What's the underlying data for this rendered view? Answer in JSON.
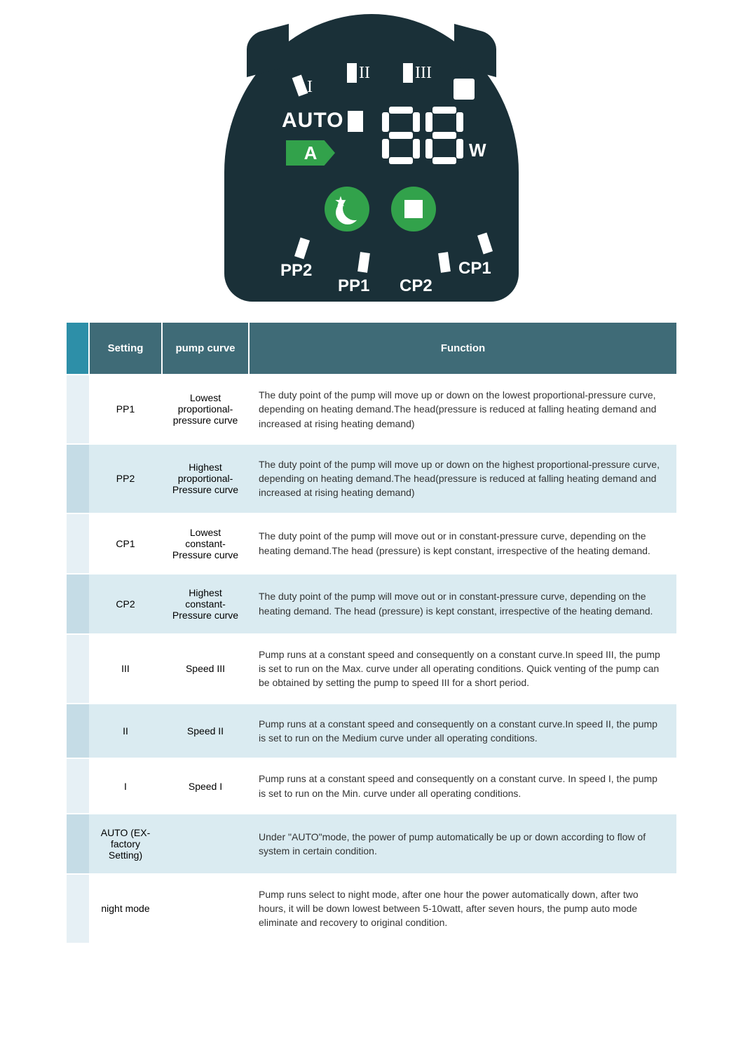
{
  "colors": {
    "panel_bg": "#1a3038",
    "accent_green": "#32a24b",
    "white": "#ffffff",
    "header_bg": "#3f6b77",
    "header_lead": "#2d8fa8",
    "row_odd_lead": "#e6f0f5",
    "row_odd_body": "#ffffff",
    "row_even_lead": "#c5dce6",
    "row_even_body": "#daebf1",
    "text_body": "#333333"
  },
  "display": {
    "speed_labels": {
      "i": "I",
      "ii": "II",
      "iii": "III"
    },
    "auto_label": "AUTO",
    "a_tag": "A",
    "watt_unit": "W",
    "digit_value": "88",
    "bottom_labels": {
      "pp2": "PP2",
      "pp1": "PP1",
      "cp2": "CP2",
      "cp1": "CP1"
    },
    "rotate_glyph": "↻"
  },
  "table": {
    "headers": {
      "setting": "Setting",
      "curve": "pump curve",
      "function": "Function"
    },
    "rows": [
      {
        "setting": "PP1",
        "curve": "Lowest proportional-pressure curve",
        "function": "The duty point of the pump will move up or down on the lowest proportional-pressure curve, depending on heating demand.The head(pressure is reduced at falling heating demand and increased at rising heating demand)"
      },
      {
        "setting": "PP2",
        "curve": "Highest proportional-Pressure curve",
        "function": "The duty point of the pump will move up or down on the highest proportional-pressure curve, depending on heating demand.The head(pressure is reduced at falling heating demand and increased at rising heating demand)"
      },
      {
        "setting": "CP1",
        "curve": "Lowest constant-Pressure curve",
        "function": "The duty point of the pump will move out or in constant-pressure curve, depending on the heating demand.The head (pressure) is kept constant, irrespective of the heating demand."
      },
      {
        "setting": "CP2",
        "curve": "Highest constant-Pressure curve",
        "function": "The duty point of the pump will move out or in constant-pressure curve, depending on the heating demand. The head (pressure) is kept constant, irrespective of the heating demand."
      },
      {
        "setting": "III",
        "curve": "Speed III",
        "function": "Pump runs at a constant speed and consequently on a constant curve.In speed III, the pump is set to run on the Max. curve under all operating conditions. Quick venting of the pump can be obtained by setting the pump to speed III for a short period."
      },
      {
        "setting": "II",
        "curve": "Speed II",
        "function": "Pump runs at a constant speed and consequently on a constant curve.In speed II, the pump is set to run on the Medium curve under all operating conditions."
      },
      {
        "setting": "I",
        "curve": "Speed I",
        "function": "Pump runs at a constant speed and consequently on a constant curve. In speed I, the pump is set to run on the Min. curve under all operating conditions."
      },
      {
        "setting": "AUTO (EX-factory Setting)",
        "curve": "",
        "function": "Under \"AUTO\"mode, the power of pump automatically be up or down according to flow of system in certain condition."
      },
      {
        "setting": "night mode",
        "curve": "",
        "function": "Pump runs select to night mode, after  one hour the power automatically down, after two hours, it will be down lowest between 5-10watt, after seven hours, the pump auto mode eliminate and recovery to original condition."
      }
    ]
  }
}
